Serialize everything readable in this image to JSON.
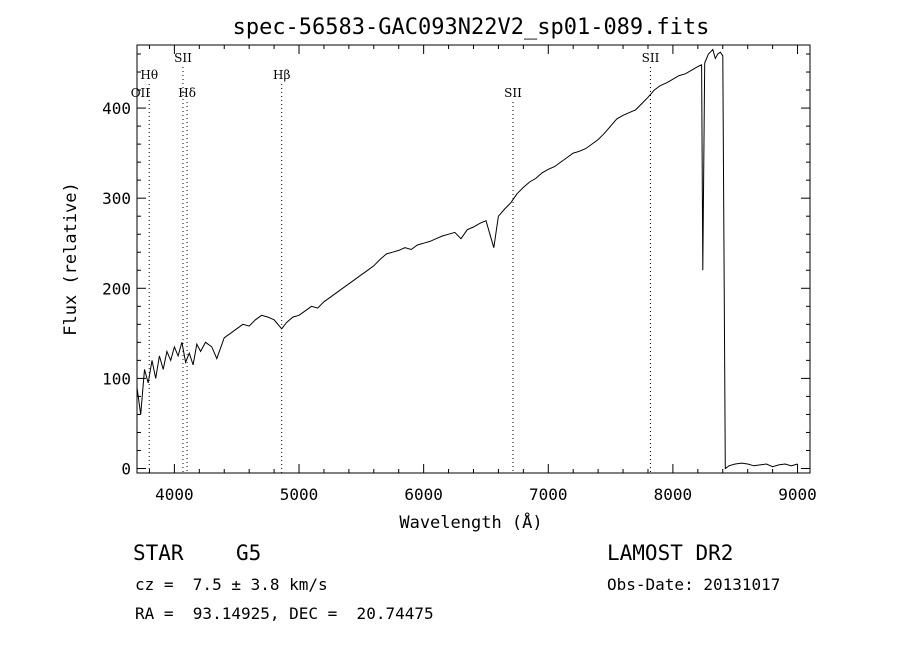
{
  "chart_data": {
    "type": "line",
    "title": "spec-56583-GAC093N22V2_sp01-089.fits",
    "xlabel": "Wavelength (Å)",
    "ylabel": "Flux (relative)",
    "xlim": [
      3700,
      9100
    ],
    "ylim": [
      -5,
      470
    ],
    "xticks": [
      4000,
      5000,
      6000,
      7000,
      8000,
      9000
    ],
    "yticks": [
      0,
      100,
      200,
      300,
      400
    ],
    "xtick_labels": [
      "4000",
      "5000",
      "6000",
      "7000",
      "8000",
      "9000"
    ],
    "ytick_labels": [
      "0",
      "100",
      "200",
      "300",
      "400"
    ],
    "grid": false,
    "series": [
      {
        "color": "#000000",
        "points": [
          [
            3700,
            90
          ],
          [
            3730,
            60
          ],
          [
            3760,
            110
          ],
          [
            3790,
            95
          ],
          [
            3820,
            120
          ],
          [
            3850,
            100
          ],
          [
            3880,
            125
          ],
          [
            3910,
            110
          ],
          [
            3940,
            130
          ],
          [
            3970,
            120
          ],
          [
            4000,
            135
          ],
          [
            4030,
            125
          ],
          [
            4060,
            140
          ],
          [
            4090,
            118
          ],
          [
            4120,
            128
          ],
          [
            4150,
            115
          ],
          [
            4180,
            138
          ],
          [
            4210,
            130
          ],
          [
            4250,
            140
          ],
          [
            4300,
            135
          ],
          [
            4340,
            122
          ],
          [
            4400,
            145
          ],
          [
            4450,
            150
          ],
          [
            4500,
            155
          ],
          [
            4550,
            160
          ],
          [
            4600,
            158
          ],
          [
            4650,
            165
          ],
          [
            4700,
            170
          ],
          [
            4750,
            168
          ],
          [
            4800,
            165
          ],
          [
            4861,
            155
          ],
          [
            4900,
            162
          ],
          [
            4950,
            168
          ],
          [
            5000,
            170
          ],
          [
            5050,
            175
          ],
          [
            5100,
            180
          ],
          [
            5150,
            178
          ],
          [
            5200,
            185
          ],
          [
            5250,
            190
          ],
          [
            5300,
            195
          ],
          [
            5350,
            200
          ],
          [
            5400,
            205
          ],
          [
            5450,
            210
          ],
          [
            5500,
            215
          ],
          [
            5550,
            220
          ],
          [
            5600,
            225
          ],
          [
            5650,
            232
          ],
          [
            5700,
            238
          ],
          [
            5750,
            240
          ],
          [
            5800,
            242
          ],
          [
            5850,
            245
          ],
          [
            5900,
            243
          ],
          [
            5950,
            248
          ],
          [
            6000,
            250
          ],
          [
            6050,
            252
          ],
          [
            6100,
            255
          ],
          [
            6150,
            258
          ],
          [
            6200,
            260
          ],
          [
            6250,
            262
          ],
          [
            6300,
            255
          ],
          [
            6350,
            265
          ],
          [
            6400,
            268
          ],
          [
            6450,
            272
          ],
          [
            6500,
            275
          ],
          [
            6563,
            245
          ],
          [
            6600,
            280
          ],
          [
            6650,
            288
          ],
          [
            6700,
            295
          ],
          [
            6750,
            305
          ],
          [
            6800,
            312
          ],
          [
            6850,
            318
          ],
          [
            6900,
            322
          ],
          [
            6950,
            328
          ],
          [
            7000,
            332
          ],
          [
            7050,
            335
          ],
          [
            7100,
            340
          ],
          [
            7150,
            345
          ],
          [
            7200,
            350
          ],
          [
            7250,
            352
          ],
          [
            7300,
            355
          ],
          [
            7350,
            360
          ],
          [
            7400,
            365
          ],
          [
            7450,
            372
          ],
          [
            7500,
            380
          ],
          [
            7550,
            388
          ],
          [
            7600,
            392
          ],
          [
            7650,
            395
          ],
          [
            7700,
            398
          ],
          [
            7750,
            405
          ],
          [
            7800,
            412
          ],
          [
            7850,
            420
          ],
          [
            7900,
            425
          ],
          [
            7950,
            428
          ],
          [
            8000,
            432
          ],
          [
            8050,
            436
          ],
          [
            8100,
            438
          ],
          [
            8150,
            442
          ],
          [
            8200,
            446
          ],
          [
            8230,
            448
          ],
          [
            8240,
            220
          ],
          [
            8255,
            450
          ],
          [
            8270,
            455
          ],
          [
            8285,
            460
          ],
          [
            8300,
            462
          ],
          [
            8320,
            465
          ],
          [
            8340,
            455
          ],
          [
            8360,
            460
          ],
          [
            8380,
            462
          ],
          [
            8400,
            458
          ],
          [
            8420,
            0
          ],
          [
            8450,
            3
          ],
          [
            8500,
            5
          ],
          [
            8550,
            6
          ],
          [
            8600,
            5
          ],
          [
            8650,
            3
          ],
          [
            8700,
            4
          ],
          [
            8750,
            5
          ],
          [
            8800,
            2
          ],
          [
            8850,
            4
          ],
          [
            8900,
            5
          ],
          [
            8950,
            3
          ],
          [
            9000,
            5
          ]
        ]
      }
    ],
    "annotations": [
      {
        "label": "OII",
        "x": 3727,
        "row": "bottom",
        "line": false
      },
      {
        "label": "Hθ",
        "x": 3798,
        "row": "middle",
        "line": true
      },
      {
        "label": "SII",
        "x": 4069,
        "row": "top",
        "line": true
      },
      {
        "label": "Hδ",
        "x": 4102,
        "row": "bottom",
        "line": true
      },
      {
        "label": "Hβ",
        "x": 4861,
        "row": "middle",
        "line": true
      },
      {
        "label": "SII",
        "x": 6717,
        "row": "bottom",
        "line": true
      },
      {
        "label": "SII",
        "x": 7820,
        "row": "top",
        "line": true
      }
    ]
  },
  "footer": {
    "object_class": "STAR",
    "subclass": "G5",
    "survey": "LAMOST DR2",
    "redshift_line": "cz =  7.5 ± 3.8 km/s",
    "obs_date_line": "Obs-Date: 20131017",
    "coords_line": "RA =  93.14925, DEC =  20.74475"
  }
}
